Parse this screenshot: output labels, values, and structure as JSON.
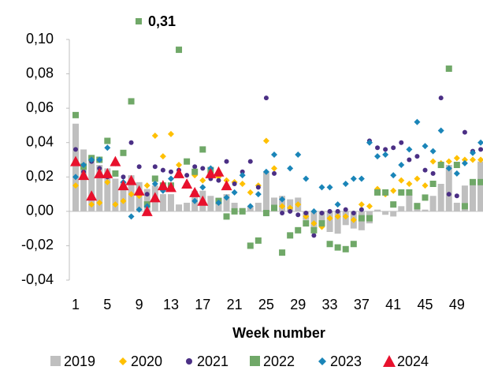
{
  "chart_data": {
    "type": "scatter",
    "xlabel": "Week number",
    "categories": [
      1,
      null,
      null,
      null,
      5,
      null,
      null,
      null,
      9,
      null,
      null,
      null,
      13,
      null,
      null,
      null,
      17,
      null,
      null,
      null,
      21,
      null,
      null,
      null,
      25,
      null,
      null,
      null,
      29,
      null,
      null,
      null,
      33,
      null,
      null,
      null,
      37,
      null,
      null,
      null,
      41,
      null,
      null,
      null,
      45,
      null,
      null,
      null,
      49,
      null,
      null,
      null
    ],
    "ylim": [
      -0.04,
      0.1
    ],
    "yticks": [
      {
        "value": -0.04,
        "label": "-0,04"
      },
      {
        "value": -0.02,
        "label": "-0,02"
      },
      {
        "value": 0,
        "label": "0,00"
      },
      {
        "value": 0.02,
        "label": "0,02"
      },
      {
        "value": 0.04,
        "label": "0,04"
      },
      {
        "value": 0.06,
        "label": "0,06"
      },
      {
        "value": 0.08,
        "label": "0,08"
      },
      {
        "value": 0.1,
        "label": "0,10"
      }
    ],
    "series": [
      {
        "name": "2019",
        "color": "#bfbfbf",
        "marker": "bar",
        "values": [
          0.051,
          0.036,
          0.032,
          0.027,
          0.025,
          0.019,
          0.017,
          0.021,
          0.017,
          0.013,
          0.015,
          0.01,
          0.01,
          0.004,
          0.005,
          0.012,
          0.012,
          0.009,
          0.008,
          0.01,
          0.005,
          0.002,
          0.003,
          0.005,
          0.023,
          0.008,
          0.009,
          0.007,
          0.008,
          -0.005,
          -0.01,
          -0.006,
          -0.012,
          -0.013,
          -0.008,
          -0.01,
          -0.011,
          -0.007,
          0.001,
          -0.002,
          -0.003,
          0.003,
          0.01,
          0.005,
          0.001,
          0.009,
          0.016,
          0.027,
          0.005,
          0.015,
          0.018,
          0.029
        ]
      },
      {
        "name": "2020",
        "color": "#ffc000",
        "marker": "diamond",
        "values": [
          0.015,
          0.02,
          0.004,
          0.005,
          0.017,
          0.004,
          0.006,
          0.01,
          0.009,
          0.015,
          0.044,
          0.032,
          0.045,
          0.027,
          0.015,
          0.021,
          0.018,
          0.02,
          0.02,
          0.018,
          0.017,
          0.016,
          0.011,
          0.015,
          0.041,
          0.025,
          0.003,
          0.002,
          0.004,
          -0.003,
          -0.007,
          -0.009,
          -0.004,
          -0.003,
          -0.003,
          -0.005,
          0.004,
          0.003,
          0.013,
          0.01,
          0.012,
          0.018,
          0.016,
          0.019,
          0.015,
          0.029,
          0.028,
          0.029,
          0.031,
          0.03,
          0.03,
          0.03
        ]
      },
      {
        "name": "2021",
        "color": "#4b2f85",
        "marker": "circle",
        "values": [
          0.036,
          0.023,
          0.029,
          0.025,
          0.02,
          0.022,
          0.02,
          0.04,
          0.026,
          0.01,
          0.026,
          0.024,
          0.023,
          0.024,
          0.021,
          0.026,
          0.025,
          0.019,
          0.018,
          0.029,
          0.016,
          0.023,
          0.029,
          0.014,
          0.066,
          0.022,
          -0.001,
          0.0,
          -0.002,
          -0.001,
          -0.014,
          -0.001,
          0.0,
          0.0,
          0.001,
          -0.001,
          0.001,
          0.041,
          0.037,
          0.036,
          0.037,
          0.04,
          0.03,
          0.032,
          0.024,
          0.022,
          0.066,
          0.01,
          0.009,
          0.046,
          0.035,
          0.036
        ]
      },
      {
        "name": "2022",
        "color": "#70a868",
        "marker": "square",
        "values": [
          0.056,
          0.026,
          0.031,
          0.03,
          0.041,
          0.022,
          0.034,
          0.064,
          0.31,
          0.004,
          0.019,
          0.015,
          0.015,
          0.094,
          0.029,
          0.023,
          0.036,
          0.024,
          0.006,
          -0.003,
          0.0,
          0.0,
          -0.02,
          -0.017,
          -0.001,
          0.002,
          -0.024,
          -0.014,
          -0.011,
          -0.007,
          -0.011,
          -0.007,
          -0.019,
          -0.021,
          -0.022,
          -0.019,
          -0.004,
          -0.004,
          0.011,
          0.011,
          0.004,
          0.011,
          0.011,
          0.003,
          0.008,
          0.016,
          0.027,
          0.083,
          0.027,
          0.003,
          0.017,
          0.017
        ],
        "value_labels": [
          null,
          null,
          null,
          null,
          null,
          null,
          null,
          null,
          "0,31",
          null,
          null,
          null,
          null,
          null,
          null,
          null,
          null,
          null,
          null,
          null,
          null,
          null,
          null,
          null,
          null,
          null,
          null,
          null,
          null,
          null,
          null,
          null,
          null,
          null,
          null,
          null,
          null,
          null,
          null,
          null,
          null,
          null,
          null,
          null,
          null,
          null,
          null,
          null,
          null,
          null,
          null,
          null
        ]
      },
      {
        "name": "2023",
        "color": "#1a85b8",
        "marker": "diamond",
        "values": [
          0.02,
          0.027,
          0.03,
          0.03,
          0.037,
          0.028,
          0.017,
          -0.003,
          0.001,
          0.003,
          0.016,
          0.012,
          0.019,
          0.021,
          0.016,
          0.006,
          0.014,
          0.025,
          0.005,
          0.008,
          0.011,
          0.021,
          0.003,
          0.01,
          0.023,
          0.033,
          0.007,
          0.025,
          0.033,
          0.019,
          0.0,
          0.014,
          0.014,
          0.004,
          0.016,
          0.019,
          0.019,
          0.04,
          0.032,
          0.033,
          0.021,
          0.027,
          0.036,
          0.052,
          0.038,
          0.035,
          0.047,
          0.025,
          0.022,
          0.028,
          0.034,
          0.04
        ]
      },
      {
        "name": "2024",
        "color": "#e8112d",
        "marker": "triangle",
        "values": [
          0.029,
          0.021,
          0.009,
          0.022,
          0.022,
          0.029,
          0.015,
          0.018,
          0.012,
          0.0,
          0.008,
          0.015,
          0.014,
          0.022,
          0.016,
          0.011,
          0.006,
          0.022,
          0.023,
          0.015,
          null,
          null,
          null,
          null,
          null,
          null,
          null,
          null,
          null,
          null,
          null,
          null,
          null,
          null,
          null,
          null,
          null,
          null,
          null,
          null,
          null,
          null,
          null,
          null,
          null,
          null,
          null,
          null,
          null,
          null,
          null,
          null
        ]
      }
    ]
  }
}
